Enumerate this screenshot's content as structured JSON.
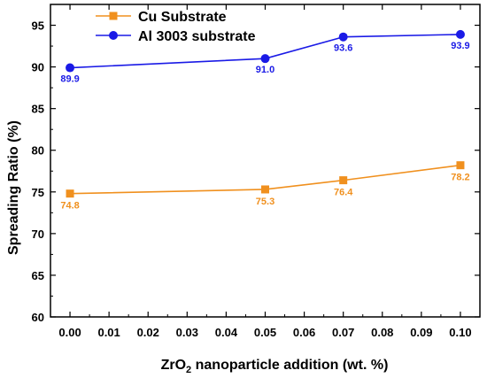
{
  "chart_data": {
    "type": "line",
    "xlabel_main": "ZrO",
    "xlabel_sub": "2",
    "xlabel_rest": " nanoparticle addition (wt. %)",
    "ylabel": "Spreading Ratio (%)",
    "xlim": [
      -0.005,
      0.105
    ],
    "ylim": [
      60,
      97.5
    ],
    "x_ticks": [
      "0.00",
      "0.01",
      "0.02",
      "0.03",
      "0.04",
      "0.05",
      "0.06",
      "0.07",
      "0.08",
      "0.09",
      "0.10"
    ],
    "y_ticks": [
      "60",
      "65",
      "70",
      "75",
      "80",
      "85",
      "90",
      "95"
    ],
    "legend_position": "top-left",
    "grid": false,
    "series": [
      {
        "name": "Cu Substrate",
        "color": "#F0901E",
        "marker": "square",
        "x": [
          0.0,
          0.05,
          0.07,
          0.1
        ],
        "y": [
          74.8,
          75.3,
          76.4,
          78.2
        ],
        "labels": [
          "74.8",
          "75.3",
          "76.4",
          "78.2"
        ]
      },
      {
        "name": "Al 3003 substrate",
        "color": "#1A1AE6",
        "marker": "circle",
        "x": [
          0.0,
          0.05,
          0.07,
          0.1
        ],
        "y": [
          89.9,
          91.0,
          93.6,
          93.9
        ],
        "labels": [
          "89.9",
          "91.0",
          "93.6",
          "93.9"
        ]
      }
    ]
  }
}
